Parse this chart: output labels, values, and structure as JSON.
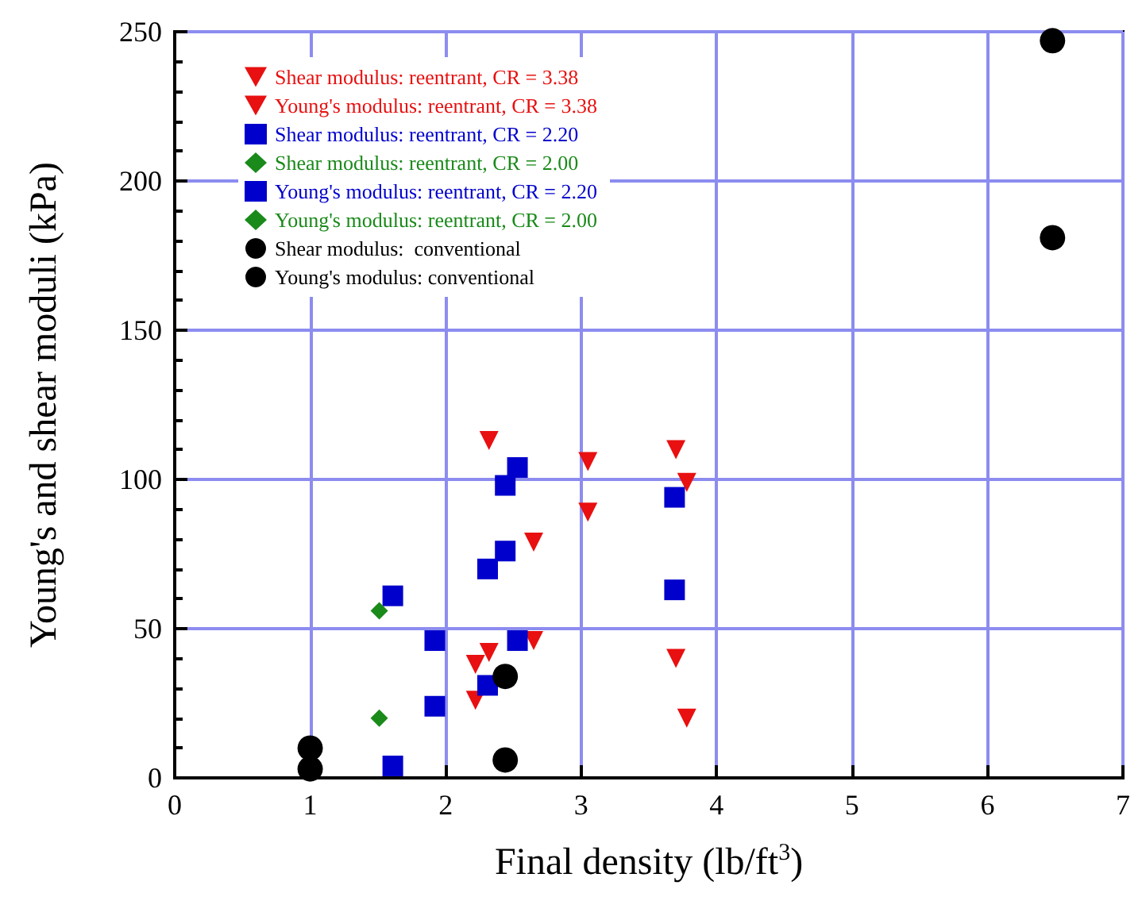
{
  "chart_data": {
    "type": "scatter",
    "xlabel": "Final density (lb/ft$^{3}$)",
    "ylabel": "Young's and shear moduli (kPa)",
    "xlim": [
      0,
      7
    ],
    "xticks": [
      0,
      1,
      2,
      3,
      4,
      5,
      6,
      7
    ],
    "ylim": [
      0,
      250
    ],
    "yticks": [
      0,
      50,
      100,
      150,
      200,
      250
    ],
    "grid": true,
    "legend": "top left",
    "series": [
      {
        "name": "Shear modulus: reentrant, CR = 3.38",
        "color": "#e81010",
        "marker": "triangle",
        "x": [
          2.32,
          3.05,
          3.7,
          3.78,
          2.65,
          2.22
        ],
        "values": [
          113,
          106,
          110,
          99,
          79,
          26
        ]
      },
      {
        "name": "Young's modulus: reentrant, CR = 3.38",
        "color": "#e81010",
        "marker": "triangle",
        "x": [
          3.05,
          2.65,
          2.32,
          2.22,
          3.7,
          3.78
        ],
        "values": [
          89,
          46,
          42,
          38,
          40,
          20
        ]
      },
      {
        "name": "Shear modulus: reentrant, CR = 2.20",
        "color": "#0000cc",
        "marker": "square",
        "x": [
          2.53,
          2.44,
          3.69,
          2.31,
          1.61,
          1.92
        ],
        "values": [
          104,
          98,
          94,
          70,
          61,
          46
        ]
      },
      {
        "name": "Shear modulus: reentrant, CR = 2.00",
        "color": "#1a8a1a",
        "marker": "diamond",
        "x": [
          1.51
        ],
        "values": [
          56
        ]
      },
      {
        "name": "Young's modulus: reentrant, CR = 2.20",
        "color": "#0000cc",
        "marker": "square",
        "x": [
          2.44,
          3.69,
          2.53,
          2.31,
          1.92,
          1.61
        ],
        "values": [
          76,
          63,
          46,
          31,
          24,
          4
        ]
      },
      {
        "name": "Young's modulus: reentrant, CR = 2.00",
        "color": "#1a8a1a",
        "marker": "diamond",
        "x": [
          1.51
        ],
        "values": [
          20
        ]
      },
      {
        "name": "Shear modulus:  conventional",
        "color": "#000000",
        "marker": "circle",
        "x": [
          1.0,
          2.44,
          6.48
        ],
        "values": [
          10,
          34,
          247
        ]
      },
      {
        "name": "Young's modulus: conventional",
        "color": "#000000",
        "marker": "circle",
        "x": [
          1.0,
          2.44,
          6.48
        ],
        "values": [
          3,
          6,
          181
        ]
      }
    ]
  }
}
